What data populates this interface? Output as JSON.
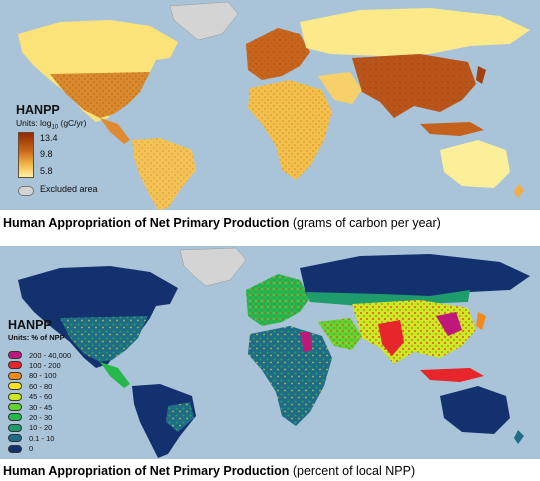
{
  "map1": {
    "legend": {
      "title": "HANPP",
      "units_prefix": "Units: log",
      "units_sub": "10",
      "units_suffix": " (gC/yr)",
      "ticks": [
        "13.4",
        "9.8",
        "5.8"
      ],
      "excluded_label": "Excluded area"
    },
    "caption_bold": "Human Appropriation of Net Primary Production",
    "caption_rest": " (grams of carbon per year)",
    "colors": {
      "ocean": "#a9c3d8",
      "low": "#fff3a6",
      "mid": "#e9a53a",
      "high": "#8f2a05",
      "excluded": "#d4d4d4"
    }
  },
  "map2": {
    "legend": {
      "title": "HANPP",
      "units": "Units: % of NPP",
      "classes": [
        {
          "label": "200 - 40,000",
          "color": "#c0187a"
        },
        {
          "label": "100 - 200",
          "color": "#e6262a"
        },
        {
          "label": "80 - 100",
          "color": "#f48a1c"
        },
        {
          "label": "60 - 80",
          "color": "#f7e41e"
        },
        {
          "label": "45 - 60",
          "color": "#c8ea1f"
        },
        {
          "label": "30 - 45",
          "color": "#62d22c"
        },
        {
          "label": "20 - 30",
          "color": "#26b84a"
        },
        {
          "label": "10 - 20",
          "color": "#1e9c6e"
        },
        {
          "label": "0.1 - 10",
          "color": "#1f6c86"
        },
        {
          "label": "0",
          "color": "#14316f"
        }
      ]
    },
    "caption_bold": "Human Appropriation of Net Primary Production",
    "caption_rest": " (percent of local NPP)",
    "colors": {
      "ocean": "#a9c3d8",
      "excluded": "#d4d4d4"
    }
  }
}
